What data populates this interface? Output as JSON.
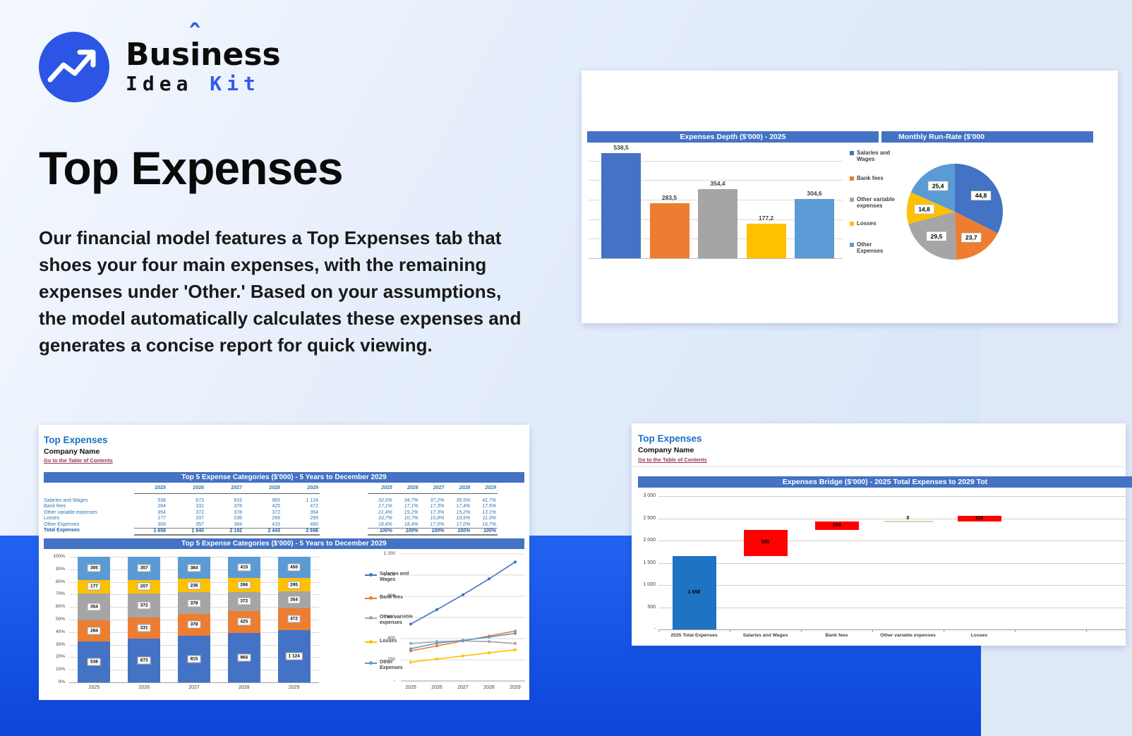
{
  "page": {
    "logo": {
      "brand_pre": "Bus",
      "brand_accent": "i",
      "brand_post": "ness",
      "brand_bottom_left": "Idea",
      "brand_bottom_right": "Kit"
    },
    "heading": "Top Expenses",
    "description": "Our financial model features a Top Expenses tab that shoes your four main expenses, with the remaining expenses under 'Other.' Based on your assumptions, the model automatically calculates these expenses and generates a concise report for quick viewing."
  },
  "colors": {
    "accent_blue": "#3658ef",
    "header_bar": "#4472c4",
    "series": [
      "#4472c4",
      "#ed7d31",
      "#a5a5a5",
      "#ffc000",
      "#5b9bd5"
    ],
    "bridge_total": "#1e73c3",
    "bridge_delta": "#ff0000",
    "bridge_zero": "#c9ddb0",
    "band_blue": "#1b57eb"
  },
  "dashboard_card": {
    "left_title": "Expenses Depth ($'000) - 2025",
    "right_title": "Monthly Run-Rate ($'000",
    "legend": [
      "Salaries and Wages",
      "Bank fees",
      "Other variable expenses",
      "Losses",
      "Other Expenses"
    ]
  },
  "sheet1": {
    "tab_title": "Top Expenses",
    "company": "Company Name",
    "toc_link": "Go to the Table of Contents",
    "section1_title": "Top 5 Expense Categories ($'000) - 5 Years to December 2029",
    "section2_title": "Top 5 Expense Categories ($'000) - 5 Years to December 2029",
    "years": [
      "2025",
      "2026",
      "2027",
      "2028",
      "2029"
    ],
    "rows": [
      {
        "label": "Salaries and Wages",
        "values": [
          "538",
          "673",
          "815",
          "965",
          "1 124"
        ],
        "pcts": [
          "32,5%",
          "34,7%",
          "37,2%",
          "39,5%",
          "41,7%"
        ]
      },
      {
        "label": "Bank fees",
        "values": [
          "284",
          "331",
          "378",
          "425",
          "472"
        ],
        "pcts": [
          "17,1%",
          "17,1%",
          "17,3%",
          "17,4%",
          "17,5%"
        ]
      },
      {
        "label": "Other variable expenses",
        "values": [
          "354",
          "372",
          "378",
          "372",
          "354"
        ],
        "pcts": [
          "21,4%",
          "19,2%",
          "17,3%",
          "15,2%",
          "13,1%"
        ]
      },
      {
        "label": "Losses",
        "values": [
          "177",
          "207",
          "236",
          "266",
          "295"
        ],
        "pcts": [
          "10,7%",
          "10,7%",
          "10,8%",
          "10,9%",
          "11,0%"
        ]
      },
      {
        "label": "Other Expenses",
        "values": [
          "305",
          "357",
          "384",
          "415",
          "450"
        ],
        "pcts": [
          "18,4%",
          "18,4%",
          "17,5%",
          "17,0%",
          "16,7%"
        ]
      }
    ],
    "total_row": {
      "label": "Total Expenses",
      "values": [
        "1 658",
        "1 940",
        "2 192",
        "2 443",
        "2 696"
      ],
      "pcts": [
        "100%",
        "100%",
        "100%",
        "100%",
        "100%"
      ]
    }
  },
  "sheet2": {
    "tab_title": "Top Expenses",
    "company": "Company Name",
    "toc_link": "Go to the Table of Contents",
    "section_title": "Expenses Bridge ($'000) - 2025 Total Expenses to 2029 Tot"
  },
  "chart_data": [
    {
      "id": "expenses_depth",
      "type": "bar",
      "title": "Expenses Depth ($'000) - 2025",
      "categories": [
        "Salaries and Wages",
        "Bank fees",
        "Other variable expenses",
        "Losses",
        "Other Expenses"
      ],
      "values": [
        538.5,
        283.5,
        354.4,
        177.2,
        304.6
      ],
      "labels": [
        "538,5",
        "283,5",
        "354,4",
        "177,2",
        "304,6"
      ],
      "colors": [
        "#4472c4",
        "#ed7d31",
        "#a5a5a5",
        "#ffc000",
        "#5b9bd5"
      ],
      "ylim": [
        0,
        600
      ],
      "grid_step": 100,
      "grid": true,
      "legend_position": "right"
    },
    {
      "id": "monthly_run_rate",
      "type": "pie",
      "title": "Monthly Run-Rate ($'000",
      "labels": [
        "Salaries and Wages",
        "Bank fees",
        "Other variable expenses",
        "Losses",
        "Other Expenses"
      ],
      "values": [
        44.8,
        23.7,
        29.5,
        14.8,
        25.4
      ],
      "slice_labels": [
        "44,8",
        "23,7",
        "29,5",
        "14,8",
        "25,4"
      ],
      "colors": [
        "#4472c4",
        "#ed7d31",
        "#a5a5a5",
        "#ffc000",
        "#5b9bd5"
      ]
    },
    {
      "id": "top5_stacked",
      "type": "bar",
      "variant": "stacked-100",
      "title": "Top 5 Expense Categories ($'000) - 5 Years to December 2029",
      "categories": [
        "2025",
        "2026",
        "2027",
        "2028",
        "2029"
      ],
      "series": [
        {
          "name": "Salaries and Wages",
          "color": "#4472c4",
          "values": [
            538,
            673,
            815,
            965,
            1124
          ],
          "labels": [
            "538",
            "673",
            "815",
            "965",
            "1 124"
          ]
        },
        {
          "name": "Bank fees",
          "color": "#ed7d31",
          "values": [
            284,
            331,
            378,
            425,
            472
          ],
          "labels": [
            "284",
            "331",
            "378",
            "425",
            "472"
          ]
        },
        {
          "name": "Other variable expenses",
          "color": "#a5a5a5",
          "values": [
            354,
            372,
            378,
            372,
            354
          ],
          "labels": [
            "354",
            "372",
            "378",
            "372",
            "354"
          ]
        },
        {
          "name": "Losses",
          "color": "#ffc000",
          "values": [
            177,
            207,
            236,
            266,
            295
          ],
          "labels": [
            "177",
            "207",
            "236",
            "266",
            "295"
          ]
        },
        {
          "name": "Other Expenses",
          "color": "#5b9bd5",
          "values": [
            305,
            357,
            384,
            415,
            450
          ],
          "labels": [
            "305",
            "357",
            "384",
            "415",
            "450"
          ]
        }
      ],
      "y_ticks": [
        "0%",
        "10%",
        "20%",
        "30%",
        "40%",
        "50%",
        "60%",
        "70%",
        "80%",
        "90%",
        "100%"
      ]
    },
    {
      "id": "top5_lines",
      "type": "line",
      "categories": [
        "2025",
        "2026",
        "2027",
        "2028",
        "2029"
      ],
      "series": [
        {
          "name": "Salaries and Wages",
          "color": "#4472c4",
          "values": [
            538,
            673,
            815,
            965,
            1124
          ]
        },
        {
          "name": "Bank fees",
          "color": "#ed7d31",
          "values": [
            284,
            331,
            378,
            425,
            472
          ]
        },
        {
          "name": "Other variable expenses",
          "color": "#a5a5a5",
          "values": [
            354,
            372,
            378,
            372,
            354
          ]
        },
        {
          "name": "Losses",
          "color": "#ffc000",
          "values": [
            177,
            207,
            236,
            266,
            295
          ]
        },
        {
          "name": "Other Expenses",
          "color": "#5b9bd5",
          "values": [
            305,
            357,
            384,
            415,
            450
          ]
        }
      ],
      "y_ticks": [
        "-",
        "200",
        "400",
        "600",
        "800",
        "1 000",
        "1 200"
      ],
      "ylim": [
        0,
        1200
      ],
      "legend_position": "left"
    },
    {
      "id": "expenses_bridge",
      "type": "bar",
      "variant": "waterfall",
      "title": "Expenses Bridge ($'000) - 2025 Total Expenses to 2029 Tot",
      "steps": [
        {
          "label": "2025 Total Expenses",
          "kind": "total",
          "value": 1658,
          "display": "1 658"
        },
        {
          "label": "Salaries and Wages",
          "kind": "delta",
          "value": 585,
          "display": "585"
        },
        {
          "label": "Bank fees",
          "kind": "delta",
          "value": 189,
          "display": "189"
        },
        {
          "label": "Other variable expenses",
          "kind": "zero",
          "value": 0,
          "display": "0"
        },
        {
          "label": "Losses",
          "kind": "delta",
          "value": 118,
          "display": "118"
        }
      ],
      "y_ticks": [
        "-",
        "500",
        "1 000",
        "1 500",
        "2 000",
        "2 500",
        "3 000"
      ],
      "ylim": [
        0,
        3000
      ],
      "total_color": "#1e73c3",
      "delta_color": "#ff0000",
      "zero_color": "#c9ddb0"
    }
  ]
}
